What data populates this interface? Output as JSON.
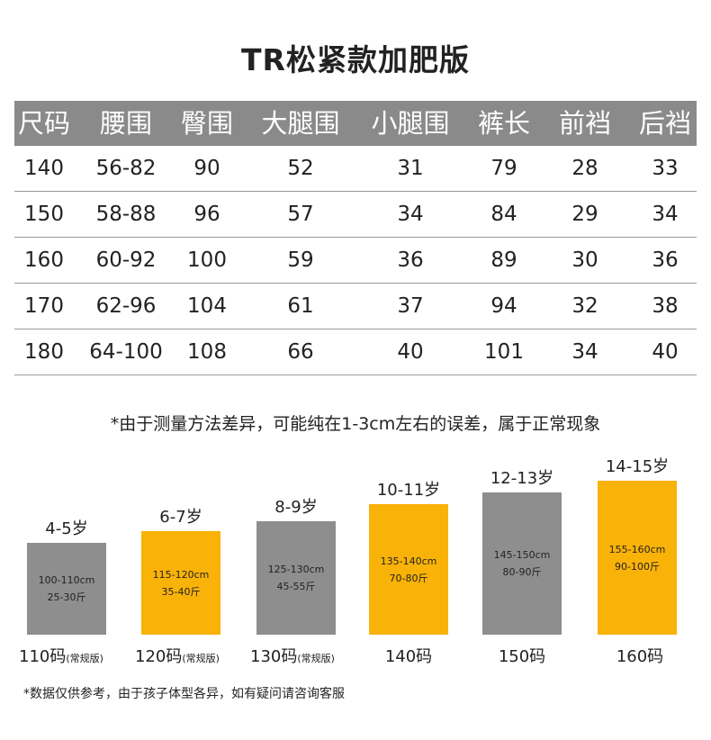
{
  "title": "TR松紧款加肥版",
  "table": {
    "headers": [
      "尺码",
      "腰围",
      "臀围",
      "大腿围",
      "小腿围",
      "裤长",
      "前裆",
      "后裆"
    ],
    "rows": [
      [
        "140",
        "56-82",
        "90",
        "52",
        "31",
        "79",
        "28",
        "33"
      ],
      [
        "150",
        "58-88",
        "96",
        "57",
        "34",
        "84",
        "29",
        "34"
      ],
      [
        "160",
        "60-92",
        "100",
        "59",
        "36",
        "89",
        "30",
        "36"
      ],
      [
        "170",
        "62-96",
        "104",
        "61",
        "37",
        "94",
        "32",
        "38"
      ],
      [
        "180",
        "64-100",
        "108",
        "66",
        "40",
        "101",
        "34",
        "40"
      ]
    ]
  },
  "note_measure": "*由于测量方法差异，可能纯在1-3cm左右的误差，属于正常现象",
  "age_guide": [
    {
      "age": "4-5岁",
      "height": "100-110cm",
      "weight": "25-30斤",
      "size": "110码",
      "suffix": "(常规版)",
      "color": "gray"
    },
    {
      "age": "6-7岁",
      "height": "115-120cm",
      "weight": "35-40斤",
      "size": "120码",
      "suffix": "(常规版)",
      "color": "yellow"
    },
    {
      "age": "8-9岁",
      "height": "125-130cm",
      "weight": "45-55斤",
      "size": "130码",
      "suffix": "(常规版)",
      "color": "gray"
    },
    {
      "age": "10-11岁",
      "height": "135-140cm",
      "weight": "70-80斤",
      "size": "140码",
      "suffix": "",
      "color": "yellow"
    },
    {
      "age": "12-13岁",
      "height": "145-150cm",
      "weight": "80-90斤",
      "size": "150码",
      "suffix": "",
      "color": "gray"
    },
    {
      "age": "14-15岁",
      "height": "155-160cm",
      "weight": "90-100斤",
      "size": "160码",
      "suffix": "",
      "color": "yellow"
    }
  ],
  "colors": {
    "header_gray": "#8a8a8a",
    "bar_gray": "#8e8e8e",
    "bar_yellow": "#f9b208"
  },
  "note_reference": "*数据仅供参考，由于孩子体型各异，如有疑问请咨询客服"
}
